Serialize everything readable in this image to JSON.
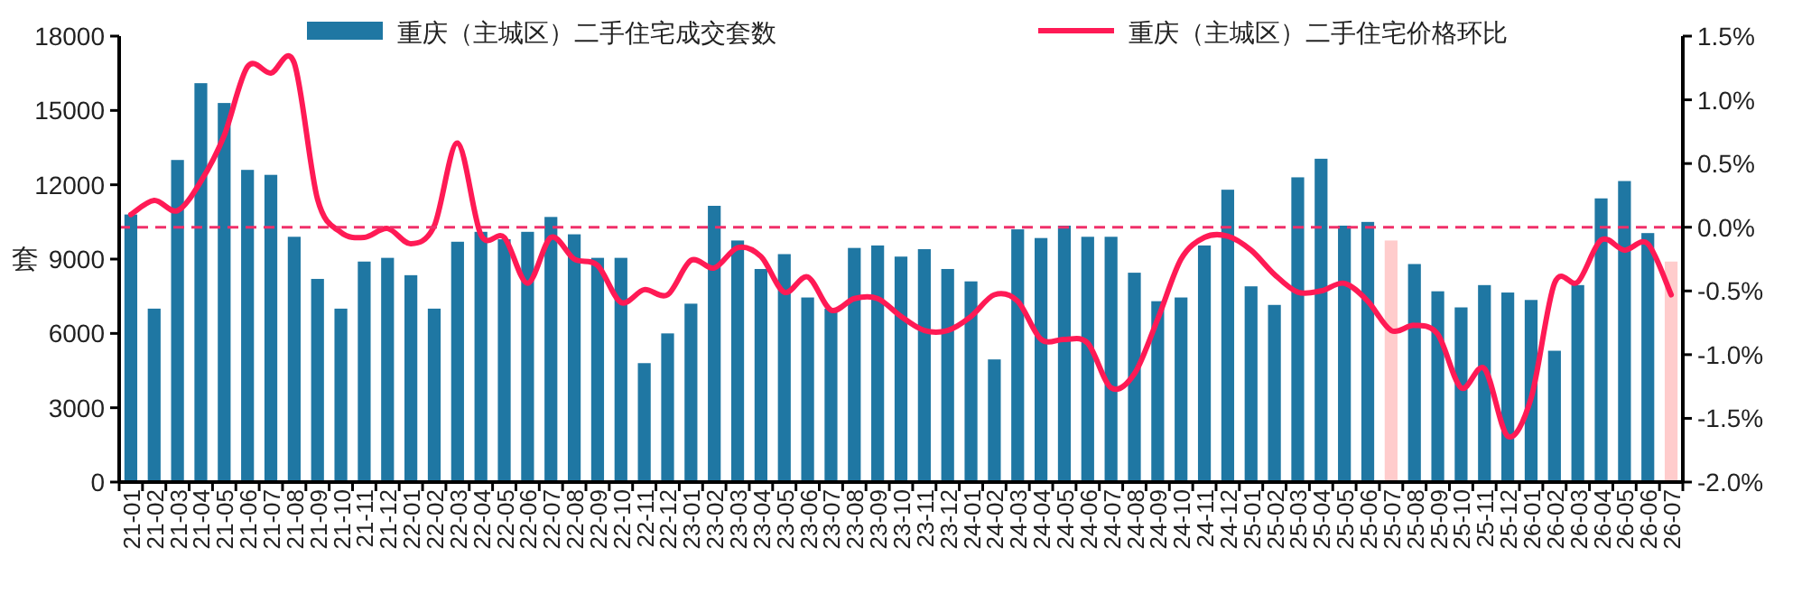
{
  "chart_data": {
    "type": "bar",
    "ylabel": "套",
    "legend": "top",
    "grid": false,
    "categories": [
      "21-01",
      "21-02",
      "21-03",
      "21-04",
      "21-05",
      "21-06",
      "21-07",
      "21-08",
      "21-09",
      "21-10",
      "21-11",
      "21-12",
      "22-01",
      "22-02",
      "22-03",
      "22-04",
      "22-05",
      "22-06",
      "22-07",
      "22-08",
      "22-09",
      "22-10",
      "22-11",
      "22-12",
      "23-01",
      "23-02",
      "23-03",
      "23-04",
      "23-05",
      "23-06",
      "23-07",
      "23-08",
      "23-09",
      "23-10",
      "23-11",
      "23-12",
      "24-01",
      "24-02",
      "24-03",
      "24-04",
      "24-05",
      "24-06",
      "24-07",
      "24-08",
      "24-09",
      "24-10",
      "24-11",
      "24-12",
      "25-01",
      "25-02",
      "25-03",
      "25-04",
      "25-05",
      "25-06",
      "25-07",
      "25-08",
      "25-09",
      "25-10",
      "25-11",
      "25-12",
      "26-01",
      "26-02",
      "26-03",
      "26-04",
      "26-05",
      "26-06",
      "26-07"
    ],
    "ylim": [
      0,
      18000
    ],
    "yticks": [
      0,
      3000,
      6000,
      9000,
      12000,
      15000,
      18000
    ],
    "y2lim": [
      -2.0,
      1.5
    ],
    "y2ticks": [
      {
        "value": -2.0,
        "label": "-2.0%"
      },
      {
        "value": -1.5,
        "label": "-1.5%"
      },
      {
        "value": -1.0,
        "label": "-1.0%"
      },
      {
        "value": -0.5,
        "label": "-0.5%"
      },
      {
        "value": 0,
        "label": "0.0%"
      },
      {
        "value": 0.5,
        "label": "0.5%"
      },
      {
        "value": 1.0,
        "label": "1.0%"
      },
      {
        "value": 1.5,
        "label": "1.5%"
      }
    ],
    "ref_lines": [
      {
        "axis": "y2",
        "value": 0,
        "color": "#f0306a",
        "line_style": "dashed"
      }
    ],
    "series": [
      {
        "name": "重庆（主城区）二手住宅成交套数",
        "color": "#1f77a3",
        "colors": [
          "#1f77a3",
          "#1f77a3",
          "#1f77a3",
          "#1f77a3",
          "#1f77a3",
          "#1f77a3",
          "#1f77a3",
          "#1f77a3",
          "#1f77a3",
          "#1f77a3",
          "#1f77a3",
          "#1f77a3",
          "#1f77a3",
          "#1f77a3",
          "#1f77a3",
          "#1f77a3",
          "#1f77a3",
          "#1f77a3",
          "#1f77a3",
          "#1f77a3",
          "#1f77a3",
          "#1f77a3",
          "#1f77a3",
          "#1f77a3",
          "#1f77a3",
          "#1f77a3",
          "#1f77a3",
          "#1f77a3",
          "#1f77a3",
          "#1f77a3",
          "#1f77a3",
          "#1f77a3",
          "#1f77a3",
          "#1f77a3",
          "#1f77a3",
          "#1f77a3",
          "#1f77a3",
          "#1f77a3",
          "#1f77a3",
          "#1f77a3",
          "#1f77a3",
          "#1f77a3",
          "#1f77a3",
          "#1f77a3",
          "#1f77a3",
          "#1f77a3",
          "#1f77a3",
          "#1f77a3",
          "#1f77a3",
          "#1f77a3",
          "#1f77a3",
          "#1f77a3",
          "#1f77a3",
          "#1f77a3",
          "#ffcccc",
          "#1f77a3",
          "#1f77a3",
          "#1f77a3",
          "#1f77a3",
          "#1f77a3",
          "#1f77a3",
          "#1f77a3",
          "#1f77a3",
          "#1f77a3",
          "#1f77a3",
          "#1f77a3",
          "#ffcccc"
        ],
        "values": [
          10800,
          7000,
          13000,
          16100,
          15300,
          12600,
          12400,
          9900,
          8200,
          7000,
          8900,
          9050,
          8350,
          7000,
          9700,
          10100,
          9800,
          10100,
          10700,
          10000,
          9050,
          9050,
          4800,
          6000,
          7200,
          11150,
          9750,
          8600,
          9200,
          7450,
          7000,
          9450,
          9550,
          9100,
          9400,
          8600,
          8100,
          4950,
          10200,
          9850,
          10350,
          9900,
          9900,
          8450,
          7300,
          7450,
          9550,
          11800,
          7900,
          7150,
          12300,
          13050,
          10350,
          10500,
          9750,
          8800,
          7700,
          7050,
          7950,
          7650,
          7350,
          5300,
          7950,
          11450,
          12150,
          10050,
          8900
        ]
      },
      {
        "name": "重庆（主城区）二手住宅价格环比",
        "type": "line",
        "axis": "y2",
        "color": "#ff1a55",
        "marker": "none",
        "line_style": "solid",
        "values": [
          0.1,
          0.21,
          0.13,
          0.36,
          0.72,
          1.26,
          1.21,
          1.29,
          0.22,
          -0.04,
          -0.08,
          -0.01,
          -0.13,
          0.01,
          0.66,
          -0.06,
          -0.08,
          -0.44,
          -0.08,
          -0.25,
          -0.3,
          -0.59,
          -0.49,
          -0.53,
          -0.26,
          -0.32,
          -0.16,
          -0.23,
          -0.51,
          -0.39,
          -0.65,
          -0.56,
          -0.56,
          -0.7,
          -0.81,
          -0.81,
          -0.7,
          -0.53,
          -0.58,
          -0.88,
          -0.88,
          -0.91,
          -1.26,
          -1.15,
          -0.72,
          -0.25,
          -0.08,
          -0.07,
          -0.18,
          -0.37,
          -0.51,
          -0.5,
          -0.44,
          -0.58,
          -0.81,
          -0.77,
          -0.84,
          -1.26,
          -1.11,
          -1.64,
          -1.34,
          -0.44,
          -0.43,
          -0.1,
          -0.18,
          -0.13,
          -0.53
        ]
      }
    ]
  }
}
